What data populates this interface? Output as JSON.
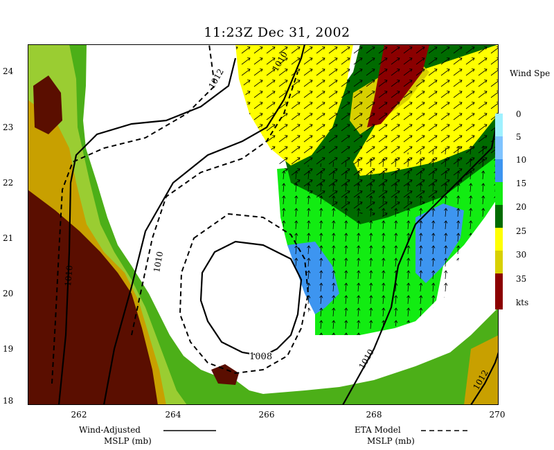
{
  "title": "11:23Z Dec 31, 2002",
  "y_ticks": [
    "24",
    "23",
    "22",
    "21",
    "20",
    "19",
    "18"
  ],
  "x_ticks": [
    "262",
    "264",
    "266",
    "268",
    "270"
  ],
  "legend": {
    "title": "Wind Spe",
    "labels": [
      "0",
      "5",
      "10",
      "15",
      "20",
      "25",
      "30",
      "35",
      "kts"
    ],
    "colors": [
      "#9ff1ff",
      "#7ec3ff",
      "#3d95f0",
      "#12ec12",
      "#006b00",
      "#ffff00",
      "#d8d000",
      "#8b0000"
    ]
  },
  "isobars": {
    "solid": [
      "1010",
      "1010",
      "1010",
      "1008",
      "1012"
    ],
    "dashed": [
      "1012",
      "1010"
    ]
  },
  "footer": {
    "left_line1": "Wind-Adjusted",
    "left_line2": "MSLP (mb)",
    "right_line1": "ETA Model",
    "right_line2": "MSLP (mb)"
  },
  "colors": {
    "land_low": "#4caf18",
    "land_mid": "#9acd32",
    "land_high": "#c8a000",
    "land_peak": "#5a0e00",
    "water": "#ffffff"
  }
}
